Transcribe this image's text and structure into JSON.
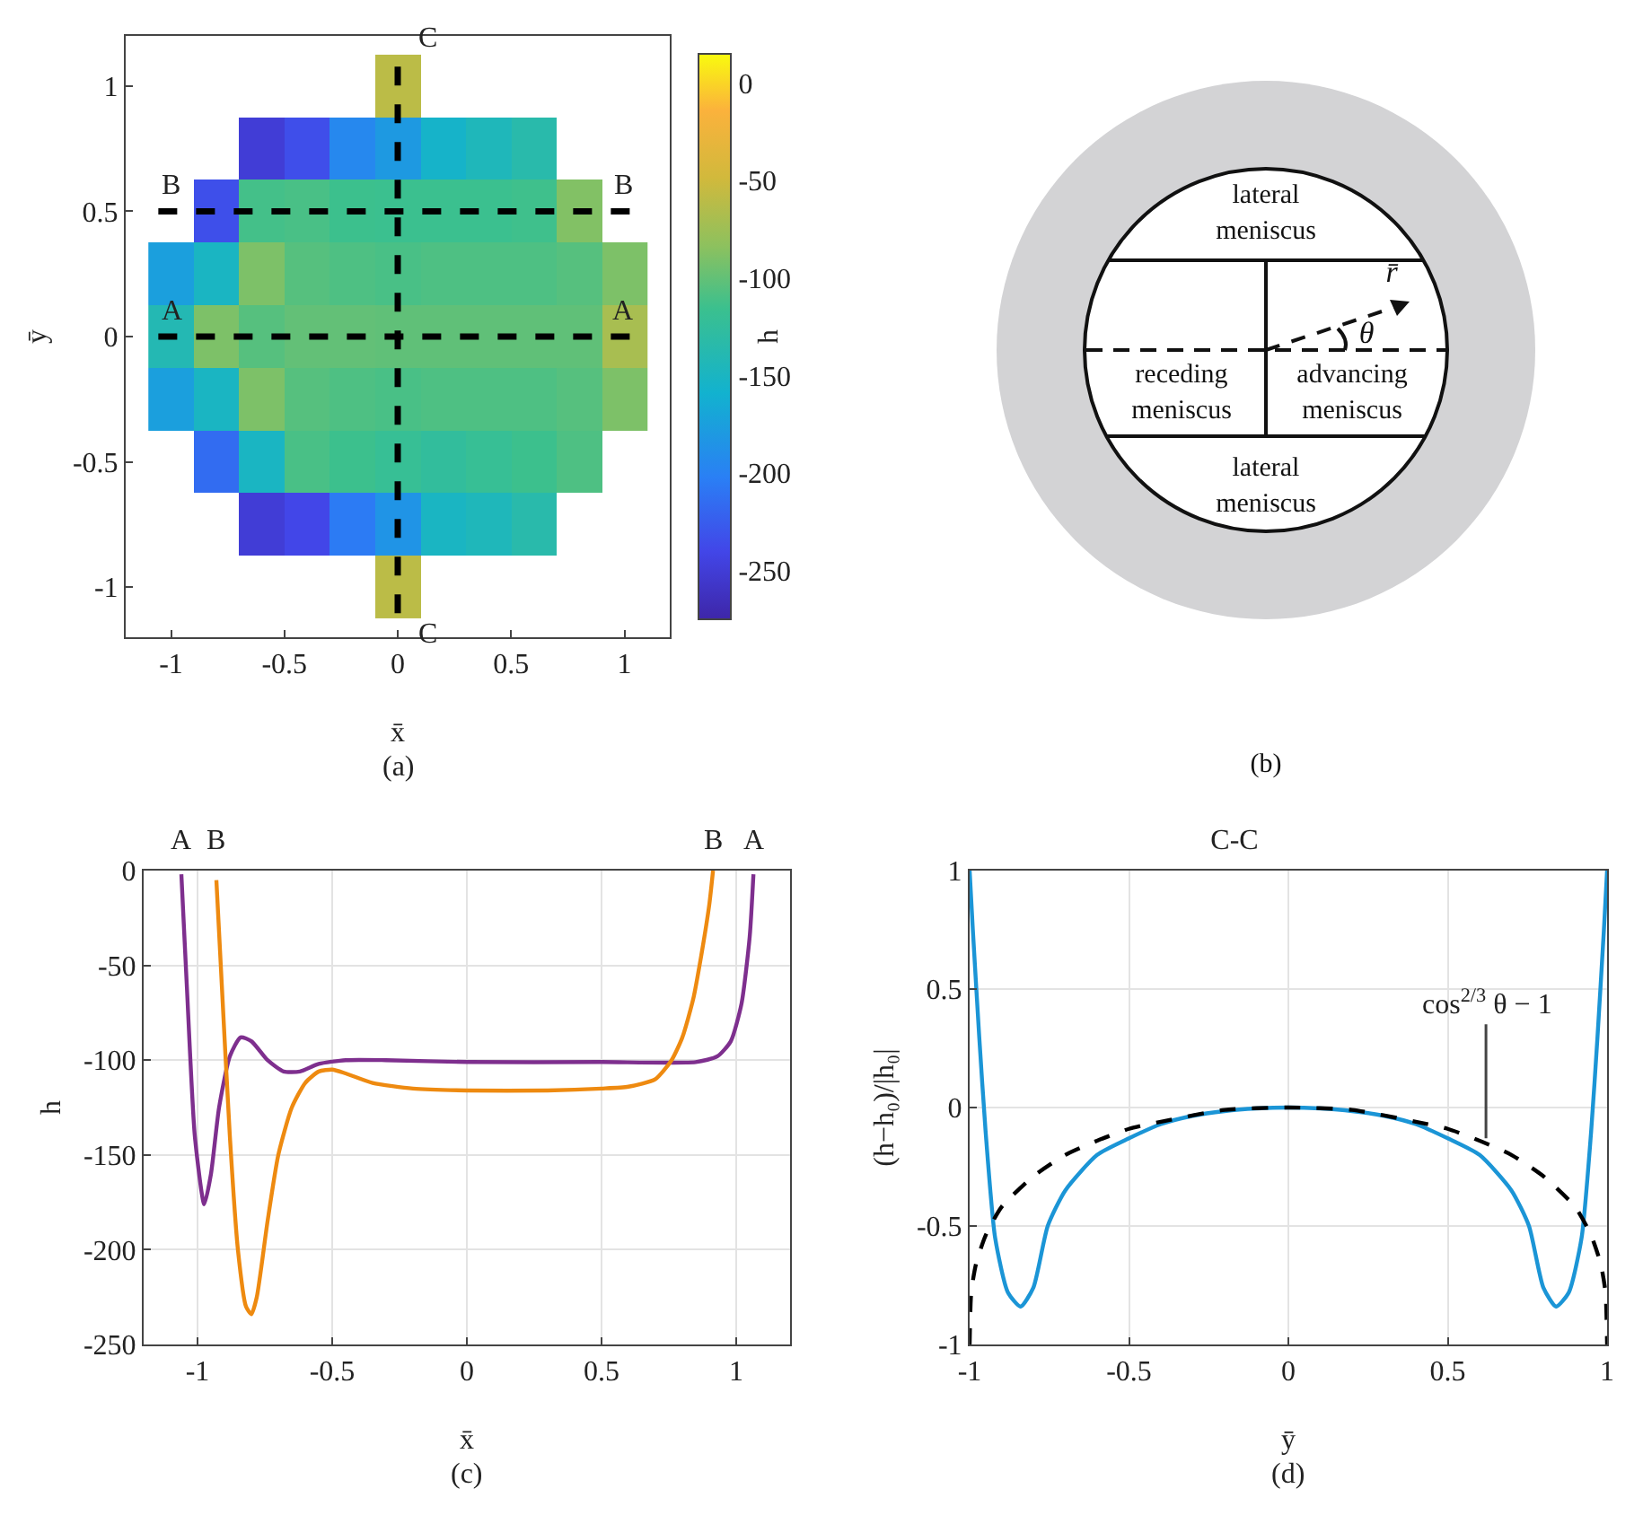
{
  "chart_data": [
    {
      "type": "heatmap",
      "xlabel": "x̄",
      "ylabel": "ȳ",
      "clabel": "h",
      "xlim": [
        -1.2,
        1.2
      ],
      "xticks": [
        -1,
        -0.5,
        0,
        0.5,
        1
      ],
      "clim": [
        -275,
        15
      ],
      "cticks": [
        -250,
        -200,
        -150,
        -100,
        -50,
        0
      ],
      "x": [
        -1,
        -0.8,
        -0.6,
        -0.4,
        -0.2,
        0,
        0.2,
        0.4,
        0.6,
        0.8,
        1
      ],
      "y_categories": [
        "1",
        null,
        "0.5",
        null,
        "0",
        null,
        "-0.5",
        null,
        "-1"
      ],
      "cells": [
        [
          null,
          null,
          null,
          null,
          null,
          -60,
          null,
          null,
          null,
          null,
          null
        ],
        [
          null,
          null,
          -250,
          -235,
          -195,
          -180,
          -155,
          -145,
          -135,
          null,
          null
        ],
        [
          null,
          -234,
          -112,
          -110,
          -115,
          -116,
          -116,
          -116,
          -114,
          -88,
          null
        ],
        [
          -175,
          -150,
          -90,
          -105,
          -108,
          -110,
          -108,
          -108,
          -108,
          -105,
          -90
        ],
        [
          -140,
          -90,
          -105,
          -100,
          -100,
          -101,
          -101,
          -101,
          -101,
          -101,
          -70
        ],
        [
          -175,
          -150,
          -90,
          -105,
          -108,
          -110,
          -108,
          -108,
          -108,
          -105,
          -90
        ],
        [
          null,
          -215,
          -150,
          -110,
          -115,
          -120,
          -125,
          -120,
          -115,
          -108,
          null
        ],
        [
          null,
          null,
          -250,
          -240,
          -205,
          -185,
          -150,
          -145,
          -135,
          null,
          null
        ],
        [
          null,
          null,
          null,
          null,
          null,
          -60,
          null,
          null,
          null,
          null,
          null
        ]
      ],
      "ref_lines": [
        {
          "axis": "y",
          "value": "0",
          "label": "A",
          "color": "#000000",
          "line_style": "dashed"
        },
        {
          "axis": "y",
          "value": "0.5",
          "label": "B",
          "color": "#000000",
          "line_style": "dashed"
        },
        {
          "axis": "x",
          "value": 0,
          "label": "C",
          "color": "#000000",
          "line_style": "dashed"
        }
      ],
      "annotations": [
        "(a)"
      ]
    },
    {
      "type": "other",
      "annotations": [
        "lateral meniscus",
        "receding meniscus",
        "advancing meniscus",
        "lateral meniscus",
        "r̄",
        "θ",
        "(b)"
      ]
    },
    {
      "type": "line",
      "xlabel": "x̄",
      "ylabel": "h",
      "xlim": [
        -1.2,
        1.2
      ],
      "ylim": [
        -250,
        0
      ],
      "xticks": [
        -1,
        -0.5,
        0,
        0.5,
        1
      ],
      "yticks": [
        -250,
        -200,
        -150,
        -100,
        -50,
        0
      ],
      "grid": true,
      "series": [
        {
          "color": "#7e2f8e",
          "x": [
            -1.06,
            -1.04,
            -1.01,
            -0.975,
            -0.95,
            -0.92,
            -0.88,
            -0.84,
            -0.8,
            -0.74,
            -0.68,
            -0.62,
            -0.55,
            -0.45,
            -0.3,
            0,
            0.5,
            0.85,
            0.93,
            0.98,
            1.02,
            1.05,
            1.064
          ],
          "values": [
            -2,
            -60,
            -140,
            -176,
            -160,
            -125,
            -98,
            -88,
            -90,
            -100,
            -106,
            -106,
            -102,
            -100,
            -100,
            -101,
            -101,
            -101,
            -98,
            -90,
            -70,
            -35,
            -2
          ]
        },
        {
          "color": "#ee8a10",
          "x": [
            -0.93,
            -0.91,
            -0.88,
            -0.85,
            -0.82,
            -0.8,
            -0.78,
            -0.74,
            -0.7,
            -0.65,
            -0.6,
            -0.55,
            -0.5,
            -0.45,
            -0.35,
            -0.2,
            0,
            0.3,
            0.5,
            0.6,
            0.7,
            0.76,
            0.8,
            0.84,
            0.87,
            0.9,
            0.914
          ],
          "values": [
            -5,
            -60,
            -140,
            -200,
            -230,
            -234,
            -225,
            -185,
            -150,
            -125,
            -112,
            -106,
            -105,
            -107,
            -112,
            -115,
            -116,
            -116,
            -115,
            -114,
            -110,
            -100,
            -88,
            -68,
            -45,
            -18,
            0
          ]
        }
      ],
      "annotations": [
        {
          "text": "A",
          "x": -1.06,
          "y": 0
        },
        {
          "text": "B",
          "x": -0.93,
          "y": 0
        },
        {
          "text": "B",
          "x": 0.914,
          "y": 0
        },
        {
          "text": "A",
          "x": 1.064,
          "y": 0
        },
        "(c)"
      ]
    },
    {
      "type": "line",
      "title": "C-C",
      "xlabel": "ȳ",
      "ylabel": "(h−h₀)/|h₀|",
      "xlim": [
        -1,
        1
      ],
      "ylim": [
        -1,
        1
      ],
      "xticks": [
        -1,
        -0.5,
        0,
        0.5,
        1
      ],
      "yticks": [
        -1,
        -0.5,
        0,
        0.5,
        1
      ],
      "grid": true,
      "series": [
        {
          "color": "#1b95d6",
          "line_style": "solid",
          "x": [
            -1,
            -0.99,
            -0.97,
            -0.95,
            -0.92,
            -0.88,
            -0.84,
            -0.8,
            -0.755,
            -0.7,
            -0.6,
            -0.5,
            -0.4,
            -0.3,
            -0.2,
            -0.1,
            0,
            0.1,
            0.2,
            0.3,
            0.4,
            0.5,
            0.6,
            0.7,
            0.755,
            0.8,
            0.84,
            0.88,
            0.92,
            0.95,
            0.97,
            0.99,
            1
          ],
          "values": [
            1,
            0.75,
            0.3,
            -0.1,
            -0.55,
            -0.78,
            -0.84,
            -0.76,
            -0.5,
            -0.35,
            -0.2,
            -0.13,
            -0.07,
            -0.035,
            -0.015,
            -0.004,
            0,
            -0.004,
            -0.015,
            -0.035,
            -0.07,
            -0.13,
            -0.2,
            -0.35,
            -0.5,
            -0.76,
            -0.84,
            -0.78,
            -0.55,
            -0.1,
            0.3,
            0.75,
            1
          ]
        },
        {
          "color": "#000000",
          "line_style": "dashed",
          "x": [
            -1,
            -0.995,
            -0.98,
            -0.95,
            -0.9,
            -0.8,
            -0.7,
            -0.6,
            -0.5,
            -0.4,
            -0.2,
            0,
            0.2,
            0.4,
            0.5,
            0.6,
            0.7,
            0.8,
            0.9,
            0.95,
            0.98,
            0.995,
            1
          ],
          "values": [
            -1,
            -0.78,
            -0.66,
            -0.54,
            -0.42,
            -0.29,
            -0.2,
            -0.14,
            -0.09,
            -0.06,
            -0.01,
            0,
            -0.01,
            -0.06,
            -0.09,
            -0.14,
            -0.2,
            -0.29,
            -0.42,
            -0.54,
            -0.66,
            -0.78,
            -1
          ]
        }
      ],
      "annotations": [
        {
          "text": "cos$^{2/3}$ θ − 1",
          "x": 0.62,
          "y": -0.13
        },
        "(d)"
      ]
    }
  ]
}
